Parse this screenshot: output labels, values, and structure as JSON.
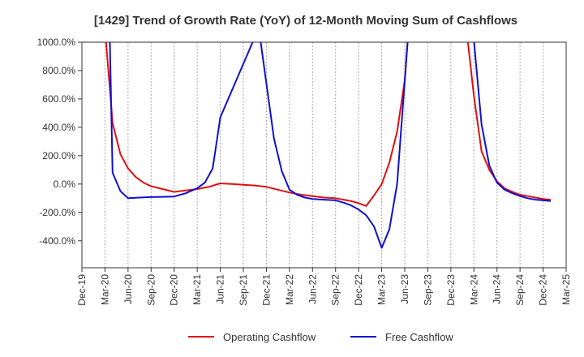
{
  "chart_data": {
    "type": "line",
    "title": "[1429]  Trend of Growth Rate (YoY) of 12-Month Moving Sum of Cashflows",
    "xlabel": "",
    "ylabel": "",
    "x_ticks": [
      "Dec-19",
      "Mar-20",
      "Jun-20",
      "Sep-20",
      "Dec-20",
      "Mar-21",
      "Jun-21",
      "Sep-21",
      "Dec-21",
      "Mar-22",
      "Jun-22",
      "Sep-22",
      "Dec-22",
      "Mar-23",
      "Jun-23",
      "Sep-23",
      "Dec-23",
      "Mar-24",
      "Jun-24",
      "Sep-24",
      "Dec-24",
      "Mar-25"
    ],
    "y_ticks": [
      "1000.0%",
      "800.0%",
      "600.0%",
      "400.0%",
      "200.0%",
      "0.0%",
      "-200.0%",
      "-400.0%"
    ],
    "y_tick_values": [
      1000,
      800,
      600,
      400,
      200,
      0,
      -200,
      -400
    ],
    "ylim": [
      -590,
      1000
    ],
    "grid": "vertical dotted",
    "legend_position": "bottom",
    "series": [
      {
        "name": "Operating Cashflow",
        "color": "#e01010",
        "values": [
          [
            1,
            1100
          ],
          [
            1.33,
            430
          ],
          [
            1.67,
            210
          ],
          [
            2,
            110
          ],
          [
            2.33,
            50
          ],
          [
            2.67,
            10
          ],
          [
            3,
            -15
          ],
          [
            3.5,
            -35
          ],
          [
            4,
            -55
          ],
          [
            4.5,
            -45
          ],
          [
            5,
            -35
          ],
          [
            5.5,
            -20
          ],
          [
            6,
            5
          ],
          [
            6.5,
            0
          ],
          [
            7,
            -5
          ],
          [
            7.5,
            -10
          ],
          [
            8,
            -20
          ],
          [
            8.5,
            -40
          ],
          [
            9,
            -60
          ],
          [
            9.5,
            -75
          ],
          [
            10,
            -85
          ],
          [
            10.5,
            -95
          ],
          [
            11,
            -100
          ],
          [
            11.5,
            -115
          ],
          [
            11.67,
            -120
          ],
          [
            12,
            -135
          ],
          [
            12.33,
            -155
          ],
          [
            12.67,
            -80
          ],
          [
            13,
            0
          ],
          [
            13.33,
            150
          ],
          [
            13.67,
            370
          ],
          [
            14,
            730
          ],
          [
            14.17,
            1100
          ],
          [
            16.67,
            1100
          ],
          [
            17,
            620
          ],
          [
            17.33,
            230
          ],
          [
            17.67,
            100
          ],
          [
            18,
            20
          ],
          [
            18.33,
            -30
          ],
          [
            18.67,
            -55
          ],
          [
            19,
            -75
          ],
          [
            19.33,
            -85
          ],
          [
            19.67,
            -95
          ],
          [
            20,
            -105
          ],
          [
            20.33,
            -110
          ]
        ]
      },
      {
        "name": "Free Cashflow",
        "color": "#1010d0",
        "values": [
          [
            1.2,
            1100
          ],
          [
            1.33,
            80
          ],
          [
            1.67,
            -50
          ],
          [
            2,
            -100
          ],
          [
            2.5,
            -95
          ],
          [
            3,
            -92
          ],
          [
            3.5,
            -90
          ],
          [
            4,
            -88
          ],
          [
            4.5,
            -65
          ],
          [
            5,
            -30
          ],
          [
            5.33,
            10
          ],
          [
            5.67,
            110
          ],
          [
            6,
            470
          ],
          [
            7.67,
            1100
          ],
          [
            8,
            710
          ],
          [
            8.33,
            320
          ],
          [
            8.67,
            90
          ],
          [
            9,
            -40
          ],
          [
            9.33,
            -75
          ],
          [
            9.67,
            -95
          ],
          [
            10,
            -105
          ],
          [
            10.5,
            -110
          ],
          [
            11,
            -115
          ],
          [
            11.33,
            -130
          ],
          [
            11.67,
            -150
          ],
          [
            12,
            -180
          ],
          [
            12.33,
            -220
          ],
          [
            12.67,
            -300
          ],
          [
            13,
            -450
          ],
          [
            13.33,
            -320
          ],
          [
            13.67,
            0
          ],
          [
            14.17,
            1100
          ],
          [
            16.95,
            1100
          ],
          [
            17.33,
            420
          ],
          [
            17.67,
            130
          ],
          [
            18,
            10
          ],
          [
            18.33,
            -40
          ],
          [
            18.67,
            -65
          ],
          [
            19,
            -85
          ],
          [
            19.33,
            -100
          ],
          [
            19.67,
            -110
          ],
          [
            20,
            -115
          ],
          [
            20.33,
            -120
          ]
        ]
      }
    ]
  }
}
